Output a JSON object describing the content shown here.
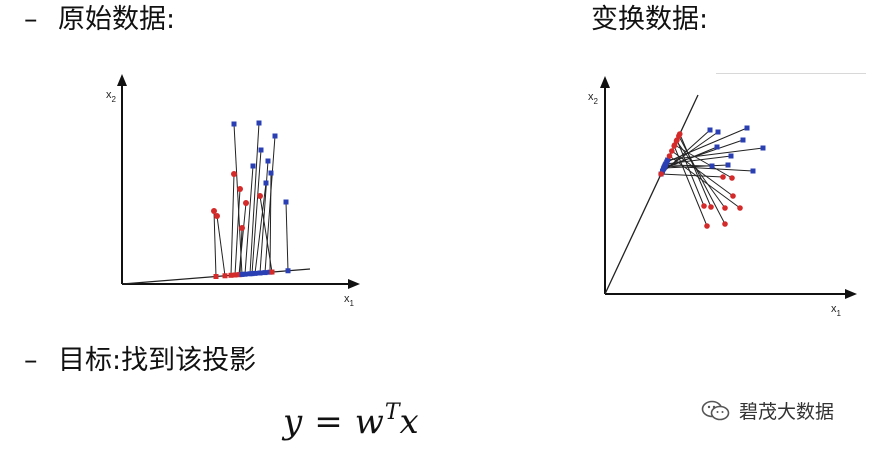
{
  "headings": {
    "dash": "–",
    "original": "原始数据:",
    "transformed": "变换数据:",
    "goal": "目标:找到该投影"
  },
  "formula": {
    "lhs": "y",
    "eq": "=",
    "w": "w",
    "sup": "T",
    "x": "x"
  },
  "left_plot": {
    "x_axis_label": "x",
    "x_axis_sub": "1",
    "y_axis_label": "x",
    "y_axis_sub": "2"
  },
  "right_plot": {
    "x_axis_label": "x",
    "x_axis_sub": "1",
    "y_axis_label": "x",
    "y_axis_sub": "2"
  },
  "colors": {
    "red_points": "#d42a2a",
    "blue_points": "#2b3fb5",
    "axis": "#111111",
    "lines": "#222222"
  },
  "watermark": {
    "icon": "wechat-icon",
    "text": "碧茂大数据"
  }
}
